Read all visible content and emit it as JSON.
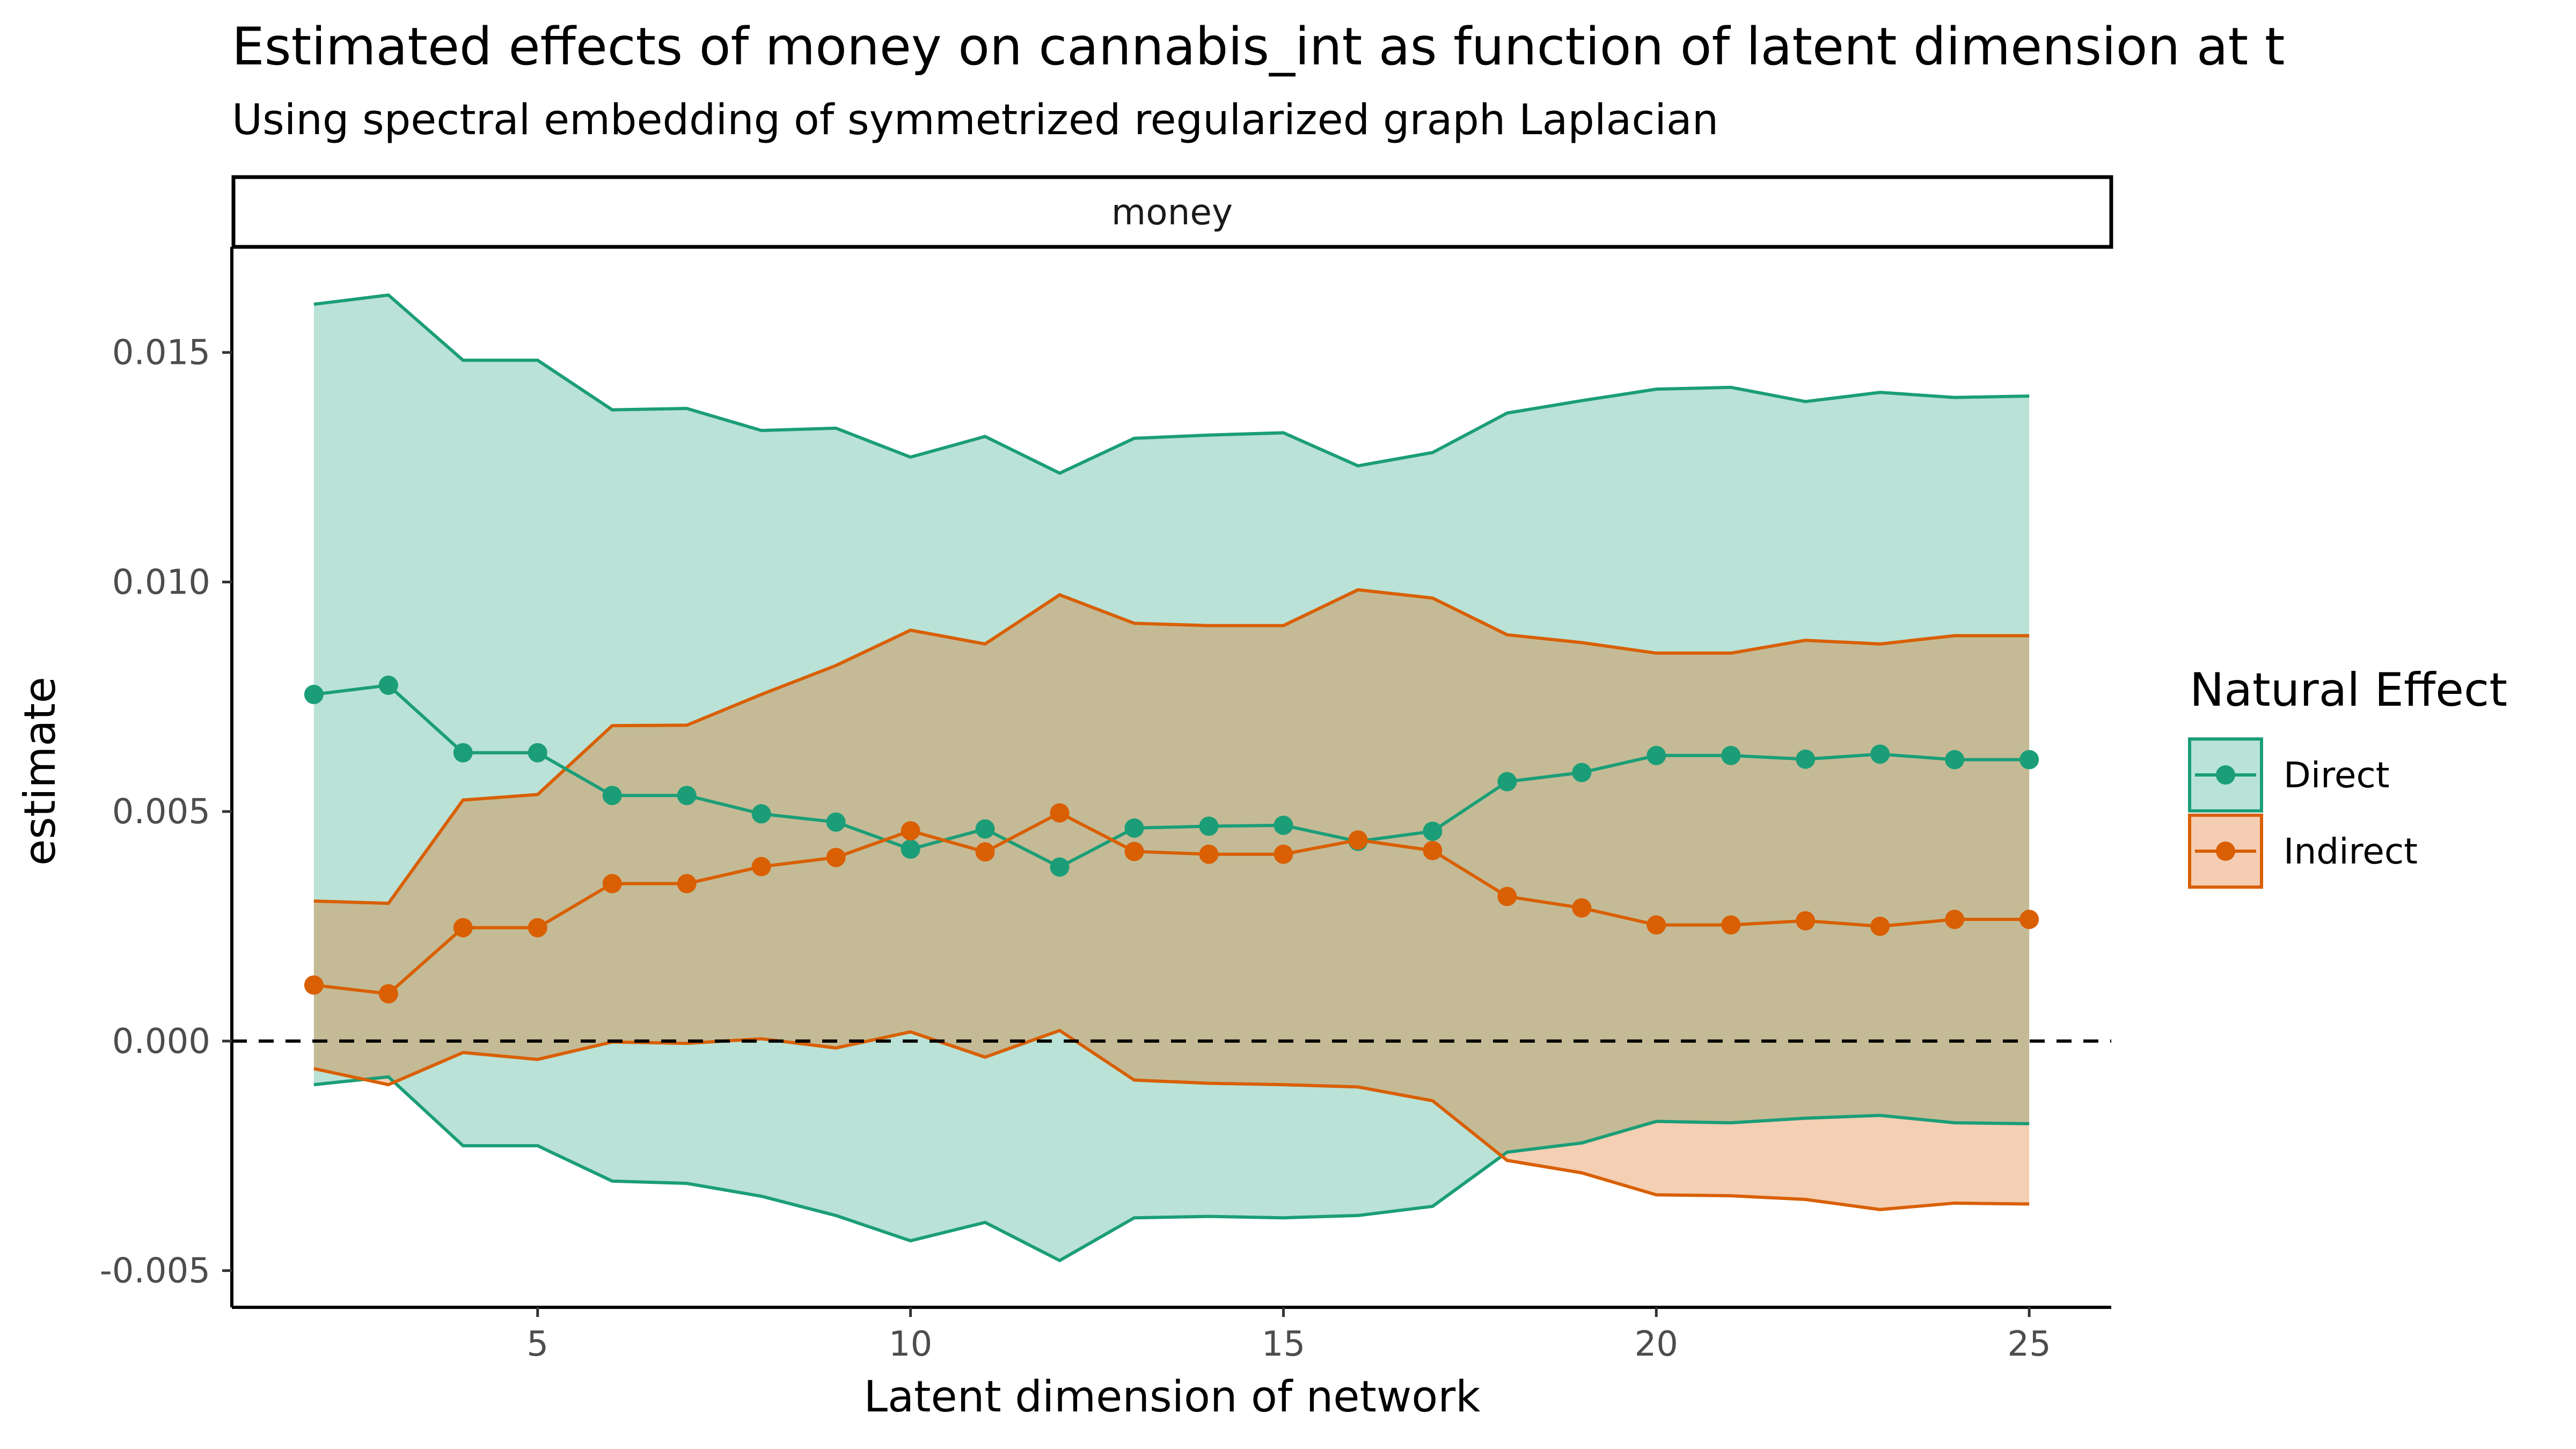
{
  "chart_data": {
    "type": "line",
    "title": "Estimated effects of money on cannabis_int as function of latent dimension at t",
    "subtitle": "Using spectral embedding of symmetrized regularized graph Laplacian",
    "facet": "money",
    "xlabel": "Latent dimension of network",
    "ylabel": "estimate",
    "xlim": [
      0.9,
      26.1
    ],
    "ylim": [
      -0.0058,
      0.0173
    ],
    "x_ticks": [
      5,
      10,
      15,
      20,
      25
    ],
    "y_ticks": [
      -0.005,
      0.0,
      0.005,
      0.01,
      0.015
    ],
    "y_tick_labels": [
      "-0.005",
      "0.000",
      "0.005",
      "0.010",
      "0.015"
    ],
    "reference_line": 0,
    "legend": {
      "title": "Natural Effect",
      "position": "right"
    },
    "x": [
      2,
      3,
      4,
      5,
      6,
      7,
      8,
      9,
      10,
      11,
      12,
      13,
      14,
      15,
      16,
      17,
      18,
      19,
      20,
      21,
      22,
      23,
      24,
      25
    ],
    "series": [
      {
        "name": "Direct",
        "color": "#1B9E77",
        "fill": "#B9E3D8",
        "values": [
          0.00755,
          0.00775,
          0.00628,
          0.00628,
          0.00535,
          0.00535,
          0.00495,
          0.00477,
          0.00418,
          0.00462,
          0.00379,
          0.00464,
          0.00468,
          0.0047,
          0.00435,
          0.00457,
          0.00565,
          0.00585,
          0.00622,
          0.00622,
          0.00614,
          0.00625,
          0.00613,
          0.00613
        ],
        "upper": [
          0.01605,
          0.01625,
          0.01483,
          0.01483,
          0.01375,
          0.01378,
          0.0133,
          0.01335,
          0.01272,
          0.01317,
          0.01237,
          0.01313,
          0.0132,
          0.01325,
          0.01253,
          0.01282,
          0.01368,
          0.01395,
          0.0142,
          0.01424,
          0.01393,
          0.01413,
          0.01402,
          0.01405
        ],
        "lower": [
          -0.00095,
          -0.00078,
          -0.00228,
          -0.00228,
          -0.00305,
          -0.0031,
          -0.00338,
          -0.0038,
          -0.00435,
          -0.00395,
          -0.00478,
          -0.00385,
          -0.00382,
          -0.00385,
          -0.0038,
          -0.0036,
          -0.00242,
          -0.00222,
          -0.00175,
          -0.00178,
          -0.00168,
          -0.00162,
          -0.00178,
          -0.0018
        ]
      },
      {
        "name": "Indirect",
        "color": "#D95F02",
        "fill": "#F5CDB2",
        "values": [
          0.00122,
          0.00103,
          0.00247,
          0.00247,
          0.00343,
          0.00343,
          0.0038,
          0.004,
          0.00458,
          0.00412,
          0.00497,
          0.00413,
          0.00407,
          0.00407,
          0.00438,
          0.00415,
          0.00315,
          0.0029,
          0.00253,
          0.00253,
          0.00262,
          0.0025,
          0.00265,
          0.00265
        ],
        "upper": [
          0.00305,
          0.003,
          0.00525,
          0.00537,
          0.00687,
          0.00688,
          0.00755,
          0.00818,
          0.00895,
          0.00865,
          0.00972,
          0.0091,
          0.00905,
          0.00905,
          0.00983,
          0.00965,
          0.00885,
          0.00868,
          0.00845,
          0.00845,
          0.00873,
          0.00865,
          0.00883,
          0.00883
        ],
        "lower": [
          -0.0006,
          -0.00095,
          -0.00025,
          -0.0004,
          -2e-05,
          -5e-05,
          5e-05,
          -0.00015,
          0.0002,
          -0.00035,
          0.00023,
          -0.00085,
          -0.00092,
          -0.00095,
          -0.001,
          -0.0013,
          -0.0026,
          -0.00287,
          -0.00335,
          -0.00337,
          -0.00345,
          -0.00367,
          -0.00353,
          -0.00355
        ]
      }
    ]
  }
}
